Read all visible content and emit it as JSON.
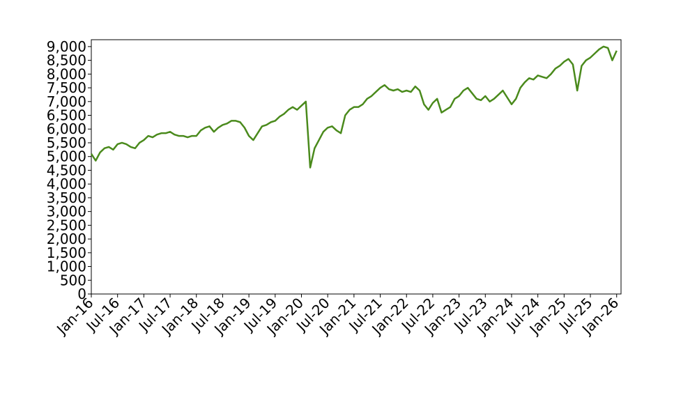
{
  "chart_data": {
    "type": "line",
    "x": [
      "2016-01",
      "2016-02",
      "2016-03",
      "2016-04",
      "2016-05",
      "2016-06",
      "2016-07",
      "2016-08",
      "2016-09",
      "2016-10",
      "2016-11",
      "2016-12",
      "2017-01",
      "2017-02",
      "2017-03",
      "2017-04",
      "2017-05",
      "2017-06",
      "2017-07",
      "2017-08",
      "2017-09",
      "2017-10",
      "2017-11",
      "2017-12",
      "2018-01",
      "2018-02",
      "2018-03",
      "2018-04",
      "2018-05",
      "2018-06",
      "2018-07",
      "2018-08",
      "2018-09",
      "2018-10",
      "2018-11",
      "2018-12",
      "2019-01",
      "2019-02",
      "2019-03",
      "2019-04",
      "2019-05",
      "2019-06",
      "2019-07",
      "2019-08",
      "2019-09",
      "2019-10",
      "2019-11",
      "2019-12",
      "2020-01",
      "2020-02",
      "2020-03",
      "2020-04",
      "2020-05",
      "2020-06",
      "2020-07",
      "2020-08",
      "2020-09",
      "2020-10",
      "2020-11",
      "2020-12",
      "2021-01",
      "2021-02",
      "2021-03",
      "2021-04",
      "2021-05",
      "2021-06",
      "2021-07",
      "2021-08",
      "2021-09",
      "2021-10",
      "2021-11",
      "2021-12",
      "2022-01",
      "2022-02",
      "2022-03",
      "2022-04",
      "2022-05",
      "2022-06",
      "2022-07",
      "2022-08",
      "2022-09",
      "2022-10",
      "2022-11",
      "2022-12",
      "2023-01",
      "2023-02",
      "2023-03",
      "2023-04",
      "2023-05",
      "2023-06",
      "2023-07",
      "2023-08",
      "2023-09",
      "2023-10",
      "2023-11",
      "2023-12",
      "2024-01",
      "2024-02",
      "2024-03",
      "2024-04",
      "2024-05",
      "2024-06",
      "2024-07",
      "2024-08",
      "2024-09",
      "2024-10",
      "2024-11",
      "2024-12",
      "2025-01",
      "2025-02",
      "2025-03",
      "2025-04",
      "2025-05",
      "2025-06",
      "2025-07",
      "2025-08",
      "2025-09",
      "2025-10",
      "2025-11",
      "2025-12",
      "2026-01"
    ],
    "series": [
      {
        "color": "#4a8a1c",
        "values": [
          5100,
          4850,
          5150,
          5300,
          5350,
          5250,
          5450,
          5500,
          5450,
          5350,
          5300,
          5500,
          5600,
          5750,
          5700,
          5800,
          5850,
          5850,
          5900,
          5800,
          5750,
          5750,
          5700,
          5750,
          5750,
          5950,
          6050,
          6100,
          5900,
          6050,
          6150,
          6200,
          6300,
          6300,
          6250,
          6050,
          5750,
          5600,
          5850,
          6100,
          6150,
          6250,
          6300,
          6450,
          6550,
          6700,
          6800,
          6700,
          6850,
          7000,
          4600,
          5300,
          5600,
          5900,
          6050,
          6100,
          5950,
          5850,
          6500,
          6700,
          6800,
          6800,
          6900,
          7100,
          7200,
          7350,
          7500,
          7600,
          7450,
          7400,
          7450,
          7350,
          7400,
          7350,
          7550,
          7400,
          6900,
          6700,
          6950,
          7100,
          6600,
          6700,
          6800,
          7100,
          7200,
          7400,
          7500,
          7300,
          7100,
          7050,
          7200,
          7000,
          7100,
          7250,
          7400,
          7150,
          6900,
          7100,
          7500,
          7700,
          7850,
          7800,
          7950,
          7900,
          7850,
          8000,
          8200,
          8300,
          8450,
          8550,
          8350,
          7400,
          8300,
          8500,
          8600,
          8750,
          8900,
          9000,
          8950,
          8500,
          8850
        ]
      }
    ],
    "xlim": [
      "2016-01",
      "2026-02"
    ],
    "xticks": [
      {
        "value": "2016-01",
        "label": "Jan-16"
      },
      {
        "value": "2016-07",
        "label": "Jul-16"
      },
      {
        "value": "2017-01",
        "label": "Jan-17"
      },
      {
        "value": "2017-07",
        "label": "Jul-17"
      },
      {
        "value": "2018-01",
        "label": "Jan-18"
      },
      {
        "value": "2018-07",
        "label": "Jul-18"
      },
      {
        "value": "2019-01",
        "label": "Jan-19"
      },
      {
        "value": "2019-07",
        "label": "Jul-19"
      },
      {
        "value": "2020-01",
        "label": "Jan-20"
      },
      {
        "value": "2020-07",
        "label": "Jul-20"
      },
      {
        "value": "2021-01",
        "label": "Jan-21"
      },
      {
        "value": "2021-07",
        "label": "Jul-21"
      },
      {
        "value": "2022-01",
        "label": "Jan-22"
      },
      {
        "value": "2022-07",
        "label": "Jul-22"
      },
      {
        "value": "2023-01",
        "label": "Jan-23"
      },
      {
        "value": "2023-07",
        "label": "Jul-23"
      },
      {
        "value": "2024-01",
        "label": "Jan-24"
      },
      {
        "value": "2024-07",
        "label": "Jul-24"
      },
      {
        "value": "2025-01",
        "label": "Jan-25"
      },
      {
        "value": "2025-07",
        "label": "Jul-25"
      },
      {
        "value": "2026-01",
        "label": "Jan-26"
      }
    ],
    "ylim": [
      0,
      9250
    ],
    "yticks": [
      0,
      500,
      {
        "value": 1000,
        "label": "1,000"
      },
      {
        "value": 1500,
        "label": "1,500"
      },
      {
        "value": 2000,
        "label": "2,000"
      },
      {
        "value": 2500,
        "label": "2,500"
      },
      {
        "value": 3000,
        "label": "3,000"
      },
      {
        "value": 3500,
        "label": "3,500"
      },
      {
        "value": 4000,
        "label": "4,000"
      },
      {
        "value": 4500,
        "label": "4,500"
      },
      {
        "value": 5000,
        "label": "5,000"
      },
      {
        "value": 5500,
        "label": "5,500"
      },
      {
        "value": 6000,
        "label": "6,000"
      },
      {
        "value": 6500,
        "label": "6,500"
      },
      {
        "value": 7000,
        "label": "7,000"
      },
      {
        "value": 7500,
        "label": "7,500"
      },
      {
        "value": 8000,
        "label": "8,000"
      },
      {
        "value": 8500,
        "label": "8,500"
      },
      {
        "value": 9000,
        "label": "9,000"
      }
    ],
    "grid": false
  }
}
